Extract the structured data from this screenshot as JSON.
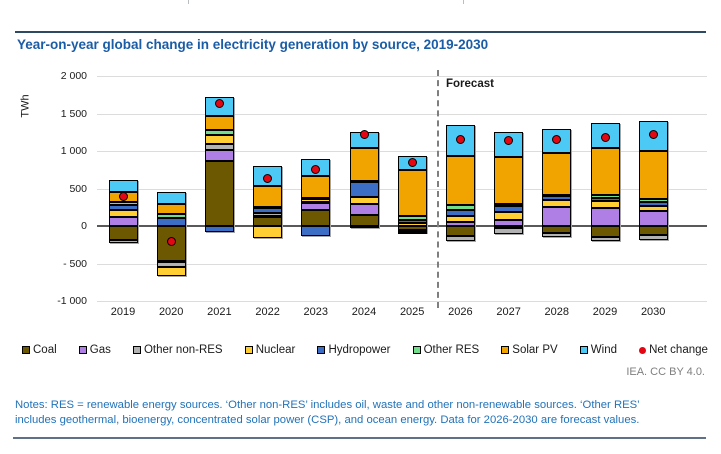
{
  "header": {
    "title": "Year-on-year global change in electricity generation by source, 2019-2030"
  },
  "chart_data": {
    "type": "bar",
    "stacked": true,
    "title": "Year-on-year global change in electricity generation by source, 2019-2030",
    "ylabel": "TWh",
    "xlabel": "",
    "grid": true,
    "legend_position": "bottom",
    "unit_label": "TWh",
    "forecast_label": "Forecast",
    "forecast_divider_after": "2025",
    "categories": [
      "2019",
      "2020",
      "2021",
      "2022",
      "2023",
      "2024",
      "2025",
      "2026",
      "2027",
      "2028",
      "2029",
      "2030"
    ],
    "y_axis": {
      "min": -1000,
      "max": 2000,
      "ticks": [
        2000,
        1500,
        1000,
        500,
        0,
        -500,
        -1000
      ],
      "tick_labels": [
        "2 000",
        "1 500",
        "1 000",
        "500",
        "0",
        "- 500",
        "-1 000"
      ]
    },
    "series": [
      {
        "name": "Coal",
        "color": "#6b5800",
        "values": [
          -185,
          -470,
          870,
          120,
          210,
          150,
          -50,
          -130,
          -25,
          -90,
          -145,
          -125
        ]
      },
      {
        "name": "Gas",
        "color": "#af7fe5",
        "values": [
          125,
          -10,
          140,
          20,
          110,
          140,
          -25,
          55,
          80,
          250,
          240,
          200
        ]
      },
      {
        "name": "Other non-RES",
        "color": "#b2b2b2",
        "values": [
          -45,
          -65,
          80,
          35,
          5,
          -25,
          -15,
          -65,
          -85,
          -55,
          -60,
          -60
        ]
      },
      {
        "name": "Nuclear",
        "color": "#ffce32",
        "values": [
          90,
          -115,
          120,
          -160,
          45,
          95,
          45,
          80,
          110,
          100,
          90,
          65
        ]
      },
      {
        "name": "Hydropower",
        "color": "#3c6ec6",
        "values": [
          65,
          105,
          -85,
          65,
          -135,
          210,
          35,
          75,
          75,
          45,
          50,
          60
        ]
      },
      {
        "name": "Other RES",
        "color": "#72de8c",
        "values": [
          35,
          50,
          65,
          10,
          10,
          10,
          55,
          65,
          35,
          25,
          30,
          40
        ]
      },
      {
        "name": "Solar PV",
        "color": "#f1a300",
        "values": [
          145,
          135,
          190,
          290,
          290,
          430,
          610,
          655,
          620,
          555,
          625,
          640
        ]
      },
      {
        "name": "Wind",
        "color": "#4dc9f5",
        "values": [
          160,
          160,
          260,
          255,
          220,
          215,
          190,
          415,
          330,
          325,
          345,
          400
        ]
      }
    ],
    "net_change": {
      "name": "Net change",
      "color": "#e30613",
      "values": [
        390,
        -210,
        1640,
        635,
        755,
        1225,
        845,
        1150,
        1140,
        1155,
        1175,
        1220
      ]
    }
  },
  "footer": {
    "credit": "IEA. CC BY 4.0.",
    "notes_line1": "Notes: RES = renewable energy sources. ‘Other non-RES’ includes oil, waste and other non-renewable sources. ‘Other RES’",
    "notes_line2": "includes geothermal, bioenergy, concentrated solar power (CSP), and ocean energy. Data for 2026-2030 are forecast values."
  }
}
